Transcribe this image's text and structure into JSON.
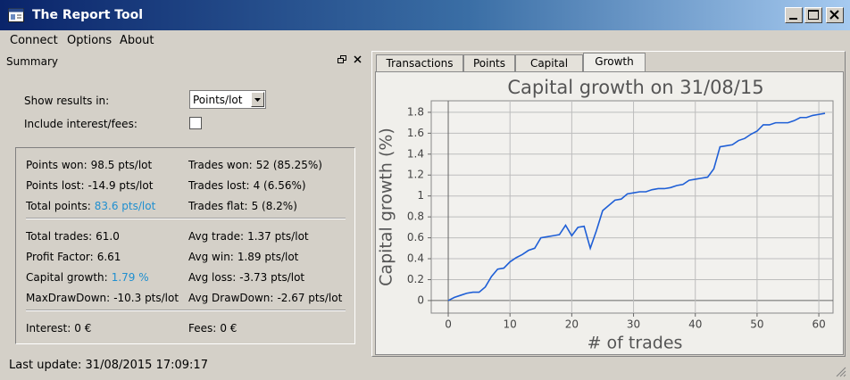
{
  "window": {
    "title": "The Report Tool"
  },
  "menu": [
    "Connect",
    "Options",
    "About"
  ],
  "summary": {
    "title": "Summary",
    "show_results_label": "Show results in:",
    "show_results_value": "Points/lot",
    "include_label": "Include interest/fees:",
    "groups": [
      [
        [
          {
            "label": "Points won:",
            "value": "98.5 pts/lot"
          },
          {
            "label": "Trades won:",
            "value": "52 (85.25%)"
          }
        ],
        [
          {
            "label": "Points lost:",
            "value": "-14.9 pts/lot"
          },
          {
            "label": "Trades lost:",
            "value": "4 (6.56%)"
          }
        ],
        [
          {
            "label": "Total points:",
            "value": "83.6 pts/lot",
            "highlight": true
          },
          {
            "label": "Trades flat:",
            "value": "5 (8.2%)"
          }
        ]
      ],
      [
        [
          {
            "label": "Total trades:",
            "value": "61.0"
          },
          {
            "label": "Avg trade:",
            "value": "1.37 pts/lot"
          }
        ],
        [
          {
            "label": "Profit Factor:",
            "value": "6.61"
          },
          {
            "label": "Avg win:",
            "value": "1.89 pts/lot"
          }
        ],
        [
          {
            "label": "Capital growth:",
            "value": "1.79 %",
            "highlight": true
          },
          {
            "label": "Avg loss:",
            "value": "-3.73 pts/lot"
          }
        ],
        [
          {
            "label": "MaxDrawDown:",
            "value": "-10.3 pts/lot"
          },
          {
            "label": "Avg DrawDown:",
            "value": "-2.67 pts/lot"
          }
        ]
      ],
      [
        [
          {
            "label": "Interest:",
            "value": "0 €"
          },
          {
            "label": "Fees:",
            "value": "0 €"
          }
        ]
      ]
    ]
  },
  "tabs": [
    "Transactions",
    "Points",
    "Capital",
    "Growth"
  ],
  "active_tab": 3,
  "status": "Last update: 31/08/2015 17:09:17",
  "chart_data": {
    "type": "line",
    "title": "Capital growth on 31/08/15",
    "x_label": "# of trades",
    "y_label": "Capital growth (%)",
    "color": "#1f5fd6",
    "grid": true,
    "x": [
      0,
      1,
      2,
      3,
      4,
      5,
      6,
      7,
      8,
      9,
      10,
      11,
      12,
      13,
      14,
      15,
      16,
      17,
      18,
      19,
      20,
      21,
      22,
      23,
      24,
      25,
      26,
      27,
      28,
      29,
      30,
      31,
      32,
      33,
      34,
      35,
      36,
      37,
      38,
      39,
      40,
      41,
      42,
      43,
      44,
      45,
      46,
      47,
      48,
      49,
      50,
      51,
      52,
      53,
      54,
      55,
      56,
      57,
      58,
      59,
      60,
      61
    ],
    "values": [
      0,
      0.03,
      0.05,
      0.07,
      0.08,
      0.08,
      0.13,
      0.23,
      0.3,
      0.31,
      0.37,
      0.41,
      0.44,
      0.48,
      0.5,
      0.6,
      0.61,
      0.62,
      0.63,
      0.72,
      0.62,
      0.7,
      0.71,
      0.5,
      0.67,
      0.86,
      0.91,
      0.96,
      0.97,
      1.02,
      1.03,
      1.04,
      1.04,
      1.06,
      1.07,
      1.07,
      1.08,
      1.1,
      1.11,
      1.15,
      1.16,
      1.17,
      1.18,
      1.26,
      1.47,
      1.48,
      1.49,
      1.53,
      1.55,
      1.59,
      1.62,
      1.68,
      1.68,
      1.7,
      1.7,
      1.7,
      1.72,
      1.75,
      1.75,
      1.77,
      1.78,
      1.79
    ],
    "xlim": [
      -2.75,
      62.3
    ],
    "ylim": [
      -0.12,
      1.91
    ],
    "xticks": [
      0,
      10,
      20,
      30,
      40,
      50,
      60
    ],
    "yticks": [
      0,
      0.2,
      0.4,
      0.6,
      0.8,
      1,
      1.2,
      1.4,
      1.6,
      1.8
    ]
  }
}
